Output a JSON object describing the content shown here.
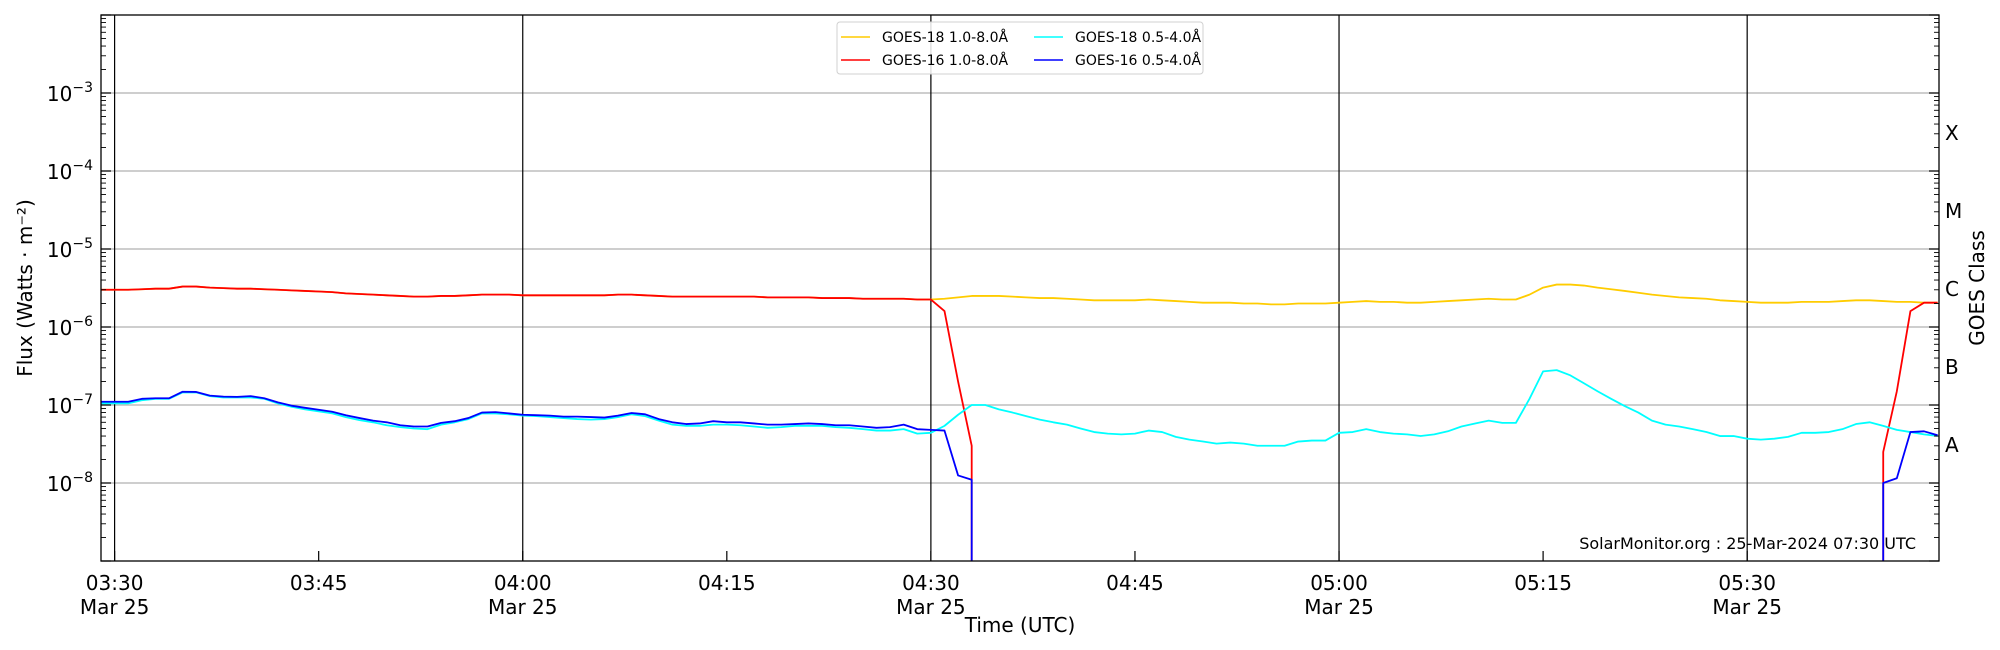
{
  "chart_data": {
    "type": "line",
    "title": "",
    "xlabel": "Time (UTC)",
    "ylabel": "Flux (Watts · m⁻²)",
    "y2label": "GOES Class",
    "yscale": "log",
    "ylim": [
      1e-09,
      0.01
    ],
    "xlim": [
      "03:29",
      "05:44"
    ],
    "x_start": "03:29",
    "cadence_minutes": 1,
    "grid": "horizontal at each decade; vertical black lines at 03:30, 04:00, 04:30, 05:00, 05:30",
    "legend_placement": "top-center",
    "y_tick_labels": [
      {
        "value": 0.001,
        "base": "10",
        "exp": "−3"
      },
      {
        "value": 0.0001,
        "base": "10",
        "exp": "−4"
      },
      {
        "value": 1e-05,
        "base": "10",
        "exp": "−5"
      },
      {
        "value": 1e-06,
        "base": "10",
        "exp": "−6"
      },
      {
        "value": 1e-07,
        "base": "10",
        "exp": "−7"
      },
      {
        "value": 1e-08,
        "base": "10",
        "exp": "−8"
      }
    ],
    "x_ticks": [
      {
        "time": "03:30",
        "label": "03:30",
        "date": "Mar 25"
      },
      {
        "time": "03:45",
        "label": "03:45",
        "date": ""
      },
      {
        "time": "04:00",
        "label": "04:00",
        "date": "Mar 25"
      },
      {
        "time": "04:15",
        "label": "04:15",
        "date": ""
      },
      {
        "time": "04:30",
        "label": "04:30",
        "date": "Mar 25"
      },
      {
        "time": "04:45",
        "label": "04:45",
        "date": ""
      },
      {
        "time": "05:00",
        "label": "05:00",
        "date": "Mar 25"
      },
      {
        "time": "05:15",
        "label": "05:15",
        "date": ""
      },
      {
        "time": "05:30",
        "label": "05:30",
        "date": "Mar 25"
      }
    ],
    "goes_classes": [
      {
        "label": "A",
        "value": 3.16e-08
      },
      {
        "label": "B",
        "value": 3.16e-07
      },
      {
        "label": "C",
        "value": 3.16e-06
      },
      {
        "label": "M",
        "value": 3.16e-05
      },
      {
        "label": "X",
        "value": 0.000316
      }
    ],
    "annotation": "SolarMonitor.org : 25-Mar-2024 07:30 UTC",
    "series": [
      {
        "name": "GOES-18 1.0-8.0Å",
        "color": "#ffcc00",
        "values": [
          3e-06,
          3e-06,
          3e-06,
          3.05e-06,
          3.1e-06,
          3.1e-06,
          3.3e-06,
          3.3e-06,
          3.2e-06,
          3.15e-06,
          3.1e-06,
          3.1e-06,
          3.05e-06,
          3e-06,
          2.95e-06,
          2.9e-06,
          2.85e-06,
          2.8e-06,
          2.7e-06,
          2.65e-06,
          2.6e-06,
          2.55e-06,
          2.5e-06,
          2.45e-06,
          2.45e-06,
          2.5e-06,
          2.5e-06,
          2.55e-06,
          2.6e-06,
          2.6e-06,
          2.6e-06,
          2.55e-06,
          2.55e-06,
          2.55e-06,
          2.55e-06,
          2.55e-06,
          2.55e-06,
          2.55e-06,
          2.6e-06,
          2.6e-06,
          2.55e-06,
          2.5e-06,
          2.45e-06,
          2.45e-06,
          2.45e-06,
          2.45e-06,
          2.45e-06,
          2.45e-06,
          2.45e-06,
          2.4e-06,
          2.4e-06,
          2.4e-06,
          2.4e-06,
          2.35e-06,
          2.35e-06,
          2.35e-06,
          2.3e-06,
          2.3e-06,
          2.3e-06,
          2.3e-06,
          2.25e-06,
          2.25e-06,
          2.3e-06,
          2.4e-06,
          2.5e-06,
          2.5e-06,
          2.5e-06,
          2.45e-06,
          2.4e-06,
          2.35e-06,
          2.35e-06,
          2.3e-06,
          2.25e-06,
          2.2e-06,
          2.2e-06,
          2.2e-06,
          2.2e-06,
          2.25e-06,
          2.2e-06,
          2.15e-06,
          2.1e-06,
          2.05e-06,
          2.05e-06,
          2.05e-06,
          2e-06,
          2e-06,
          1.95e-06,
          1.95e-06,
          2e-06,
          2e-06,
          2e-06,
          2.05e-06,
          2.1e-06,
          2.15e-06,
          2.1e-06,
          2.1e-06,
          2.05e-06,
          2.05e-06,
          2.1e-06,
          2.15e-06,
          2.2e-06,
          2.25e-06,
          2.3e-06,
          2.25e-06,
          2.25e-06,
          2.6e-06,
          3.2e-06,
          3.5e-06,
          3.5e-06,
          3.4e-06,
          3.2e-06,
          3.05e-06,
          2.9e-06,
          2.75e-06,
          2.6e-06,
          2.5e-06,
          2.4e-06,
          2.35e-06,
          2.3e-06,
          2.2e-06,
          2.15e-06,
          2.1e-06,
          2.05e-06,
          2.05e-06,
          2.05e-06,
          2.1e-06,
          2.1e-06,
          2.1e-06,
          2.15e-06,
          2.2e-06,
          2.2e-06,
          2.15e-06,
          2.1e-06,
          2.1e-06,
          2.05e-06,
          2.05e-06
        ]
      },
      {
        "name": "GOES-18 0.5-4.0Å",
        "color": "#00ffff",
        "values": [
          1.05e-07,
          1.05e-07,
          1.05e-07,
          1.15e-07,
          1.2e-07,
          1.2e-07,
          1.45e-07,
          1.45e-07,
          1.3e-07,
          1.25e-07,
          1.25e-07,
          1.25e-07,
          1.2e-07,
          1.05e-07,
          9.5e-08,
          8.8e-08,
          8.3e-08,
          7.8e-08,
          7e-08,
          6.4e-08,
          6e-08,
          5.5e-08,
          5.2e-08,
          5e-08,
          4.9e-08,
          5.6e-08,
          6e-08,
          6.6e-08,
          7.8e-08,
          7.8e-08,
          7.6e-08,
          7.3e-08,
          7.2e-08,
          7e-08,
          6.8e-08,
          6.6e-08,
          6.5e-08,
          6.6e-08,
          7e-08,
          7.6e-08,
          7.2e-08,
          6.3e-08,
          5.6e-08,
          5.4e-08,
          5.4e-08,
          5.6e-08,
          5.6e-08,
          5.5e-08,
          5.3e-08,
          5.1e-08,
          5.2e-08,
          5.4e-08,
          5.4e-08,
          5.4e-08,
          5.2e-08,
          5.1e-08,
          4.9e-08,
          4.7e-08,
          4.7e-08,
          4.9e-08,
          4.3e-08,
          4.4e-08,
          5.4e-08,
          7.5e-08,
          1e-07,
          1e-07,
          8.8e-08,
          8e-08,
          7.2e-08,
          6.5e-08,
          6e-08,
          5.6e-08,
          5e-08,
          4.5e-08,
          4.3e-08,
          4.2e-08,
          4.3e-08,
          4.7e-08,
          4.5e-08,
          3.9e-08,
          3.6e-08,
          3.4e-08,
          3.2e-08,
          3.3e-08,
          3.2e-08,
          3e-08,
          3e-08,
          3e-08,
          3.4e-08,
          3.5e-08,
          3.5e-08,
          4.4e-08,
          4.5e-08,
          4.9e-08,
          4.5e-08,
          4.3e-08,
          4.2e-08,
          4e-08,
          4.2e-08,
          4.6e-08,
          5.3e-08,
          5.8e-08,
          6.3e-08,
          5.9e-08,
          5.9e-08,
          1.2e-07,
          2.7e-07,
          2.8e-07,
          2.4e-07,
          1.9e-07,
          1.5e-07,
          1.2e-07,
          9.7e-08,
          8e-08,
          6.3e-08,
          5.6e-08,
          5.3e-08,
          4.9e-08,
          4.5e-08,
          4e-08,
          4e-08,
          3.7e-08,
          3.6e-08,
          3.7e-08,
          3.9e-08,
          4.4e-08,
          4.4e-08,
          4.5e-08,
          4.9e-08,
          5.7e-08,
          6e-08,
          5.4e-08,
          4.8e-08,
          4.5e-08,
          4.2e-08,
          4e-08
        ]
      },
      {
        "name": "GOES-16 1.0-8.0Å",
        "color": "#ff0000",
        "values": [
          3e-06,
          3e-06,
          3e-06,
          3.05e-06,
          3.1e-06,
          3.1e-06,
          3.3e-06,
          3.3e-06,
          3.2e-06,
          3.15e-06,
          3.1e-06,
          3.1e-06,
          3.05e-06,
          3e-06,
          2.95e-06,
          2.9e-06,
          2.85e-06,
          2.8e-06,
          2.7e-06,
          2.65e-06,
          2.6e-06,
          2.55e-06,
          2.5e-06,
          2.45e-06,
          2.45e-06,
          2.5e-06,
          2.5e-06,
          2.55e-06,
          2.6e-06,
          2.6e-06,
          2.6e-06,
          2.55e-06,
          2.55e-06,
          2.55e-06,
          2.55e-06,
          2.55e-06,
          2.55e-06,
          2.55e-06,
          2.6e-06,
          2.6e-06,
          2.55e-06,
          2.5e-06,
          2.45e-06,
          2.45e-06,
          2.45e-06,
          2.45e-06,
          2.45e-06,
          2.45e-06,
          2.45e-06,
          2.4e-06,
          2.4e-06,
          2.4e-06,
          2.4e-06,
          2.35e-06,
          2.35e-06,
          2.35e-06,
          2.3e-06,
          2.3e-06,
          2.3e-06,
          2.3e-06,
          2.25e-06,
          2.25e-06,
          1.6e-06,
          2e-07,
          3e-08,
          null,
          null,
          null,
          null,
          null,
          null,
          null,
          null,
          null,
          null,
          null,
          null,
          null,
          null,
          null,
          null,
          null,
          null,
          null,
          null,
          null,
          null,
          null,
          null,
          null,
          null,
          null,
          null,
          null,
          null,
          null,
          null,
          null,
          null,
          null,
          null,
          null,
          null,
          null,
          null,
          null,
          null,
          null,
          null,
          null,
          null,
          null,
          null,
          null,
          null,
          null,
          null,
          null,
          null,
          null,
          null,
          null,
          null,
          null,
          null,
          null,
          null,
          null,
          null,
          null,
          null,
          2.5e-08,
          1.5e-07,
          1.6e-06,
          2.05e-06,
          2.05e-06
        ]
      },
      {
        "name": "GOES-16 0.5-4.0Å",
        "color": "#0000ff",
        "values": [
          1.1e-07,
          1.1e-07,
          1.1e-07,
          1.2e-07,
          1.22e-07,
          1.22e-07,
          1.48e-07,
          1.47e-07,
          1.32e-07,
          1.28e-07,
          1.27e-07,
          1.3e-07,
          1.22e-07,
          1.08e-07,
          9.8e-08,
          9.2e-08,
          8.7e-08,
          8.2e-08,
          7.4e-08,
          6.8e-08,
          6.3e-08,
          6e-08,
          5.5e-08,
          5.3e-08,
          5.3e-08,
          5.9e-08,
          6.2e-08,
          6.8e-08,
          8e-08,
          8.1e-08,
          7.8e-08,
          7.5e-08,
          7.4e-08,
          7.3e-08,
          7.1e-08,
          7.1e-08,
          7e-08,
          6.9e-08,
          7.3e-08,
          7.9e-08,
          7.6e-08,
          6.6e-08,
          6e-08,
          5.7e-08,
          5.8e-08,
          6.2e-08,
          6e-08,
          6e-08,
          5.8e-08,
          5.6e-08,
          5.6e-08,
          5.7e-08,
          5.8e-08,
          5.7e-08,
          5.5e-08,
          5.5e-08,
          5.3e-08,
          5.1e-08,
          5.2e-08,
          5.6e-08,
          4.9e-08,
          4.8e-08,
          4.7e-08,
          1.25e-08,
          1.1e-08,
          null,
          null,
          null,
          null,
          null,
          null,
          null,
          null,
          null,
          null,
          null,
          null,
          null,
          null,
          null,
          null,
          null,
          null,
          null,
          null,
          null,
          null,
          null,
          null,
          null,
          null,
          null,
          null,
          null,
          null,
          null,
          null,
          null,
          null,
          null,
          null,
          null,
          null,
          null,
          null,
          null,
          null,
          null,
          null,
          null,
          null,
          null,
          null,
          null,
          null,
          null,
          null,
          null,
          null,
          null,
          null,
          null,
          null,
          null,
          null,
          null,
          null,
          null,
          null,
          null,
          null,
          1e-08,
          1.15e-08,
          4.5e-08,
          4.6e-08,
          4.1e-08
        ]
      }
    ]
  }
}
